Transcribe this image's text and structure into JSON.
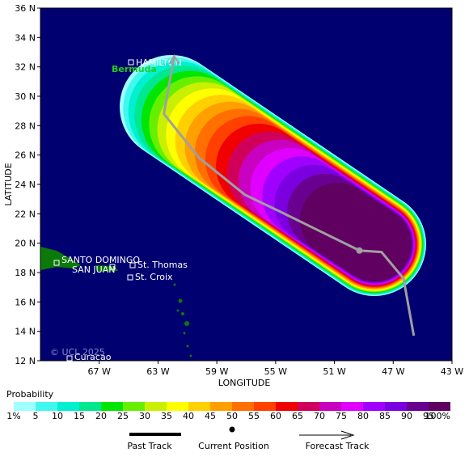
{
  "map": {
    "x_label": "LONGITUDE",
    "y_label": "LATITUDE",
    "lon_range": [
      71,
      43
    ],
    "lat_range": [
      12,
      36
    ],
    "lon_ticks": [
      {
        "value": 67,
        "label": "67 W"
      },
      {
        "value": 63,
        "label": "63 W"
      },
      {
        "value": 59,
        "label": "59 W"
      },
      {
        "value": 55,
        "label": "55 W"
      },
      {
        "value": 51,
        "label": "51 W"
      },
      {
        "value": 47,
        "label": "47 W"
      },
      {
        "value": 43,
        "label": "43 W"
      }
    ],
    "lat_ticks": [
      {
        "value": 12,
        "label": "12 N"
      },
      {
        "value": 14,
        "label": "14 N"
      },
      {
        "value": 16,
        "label": "16 N"
      },
      {
        "value": 18,
        "label": "18 N"
      },
      {
        "value": 20,
        "label": "20 N"
      },
      {
        "value": 22,
        "label": "22 N"
      },
      {
        "value": 24,
        "label": "24 N"
      },
      {
        "value": 26,
        "label": "26 N"
      },
      {
        "value": 28,
        "label": "28 N"
      },
      {
        "value": 30,
        "label": "30 N"
      },
      {
        "value": 32,
        "label": "32 N"
      },
      {
        "value": 34,
        "label": "34 N"
      },
      {
        "value": 36,
        "label": "36 N"
      }
    ],
    "places": [
      "HAMILTON",
      "Bermuda",
      "SANTO DOMINGO",
      "SAN JUAN",
      "St. Thomas",
      "St. Croix",
      "Curacao"
    ],
    "copyright": "© UCL 2025",
    "forecast_track": {
      "lon": [
        61.9,
        62.6,
        60.2,
        57.1,
        54.6,
        49.3,
        47.8,
        46.3,
        45.6
      ],
      "lat": [
        32.7,
        28.8,
        25.8,
        23.3,
        22.1,
        19.5,
        19.4,
        17.6,
        13.7
      ],
      "color": "#a0a0a0"
    },
    "current_position": {
      "lon": 49.3,
      "lat": 19.5
    }
  },
  "colorbar": {
    "title": "Probability",
    "labels": [
      "1%",
      "5",
      "10",
      "15",
      "20",
      "25",
      "30",
      "35",
      "40",
      "45",
      "50",
      "55",
      "60",
      "65",
      "70",
      "75",
      "80",
      "85",
      "90",
      "95",
      "100%"
    ],
    "colors": [
      "#a0ffff",
      "#40f8f0",
      "#00f0d0",
      "#00e890",
      "#00e600",
      "#66f000",
      "#c8f000",
      "#ffff00",
      "#ffd000",
      "#ffa000",
      "#ff7000",
      "#ff4000",
      "#f00000",
      "#d0005a",
      "#c800c0",
      "#e000ff",
      "#a000ff",
      "#7a00e0",
      "#6a0090",
      "#600060"
    ]
  },
  "legend": {
    "past": "Past Track",
    "current": "Current Position",
    "forecast": "Forecast Track"
  }
}
